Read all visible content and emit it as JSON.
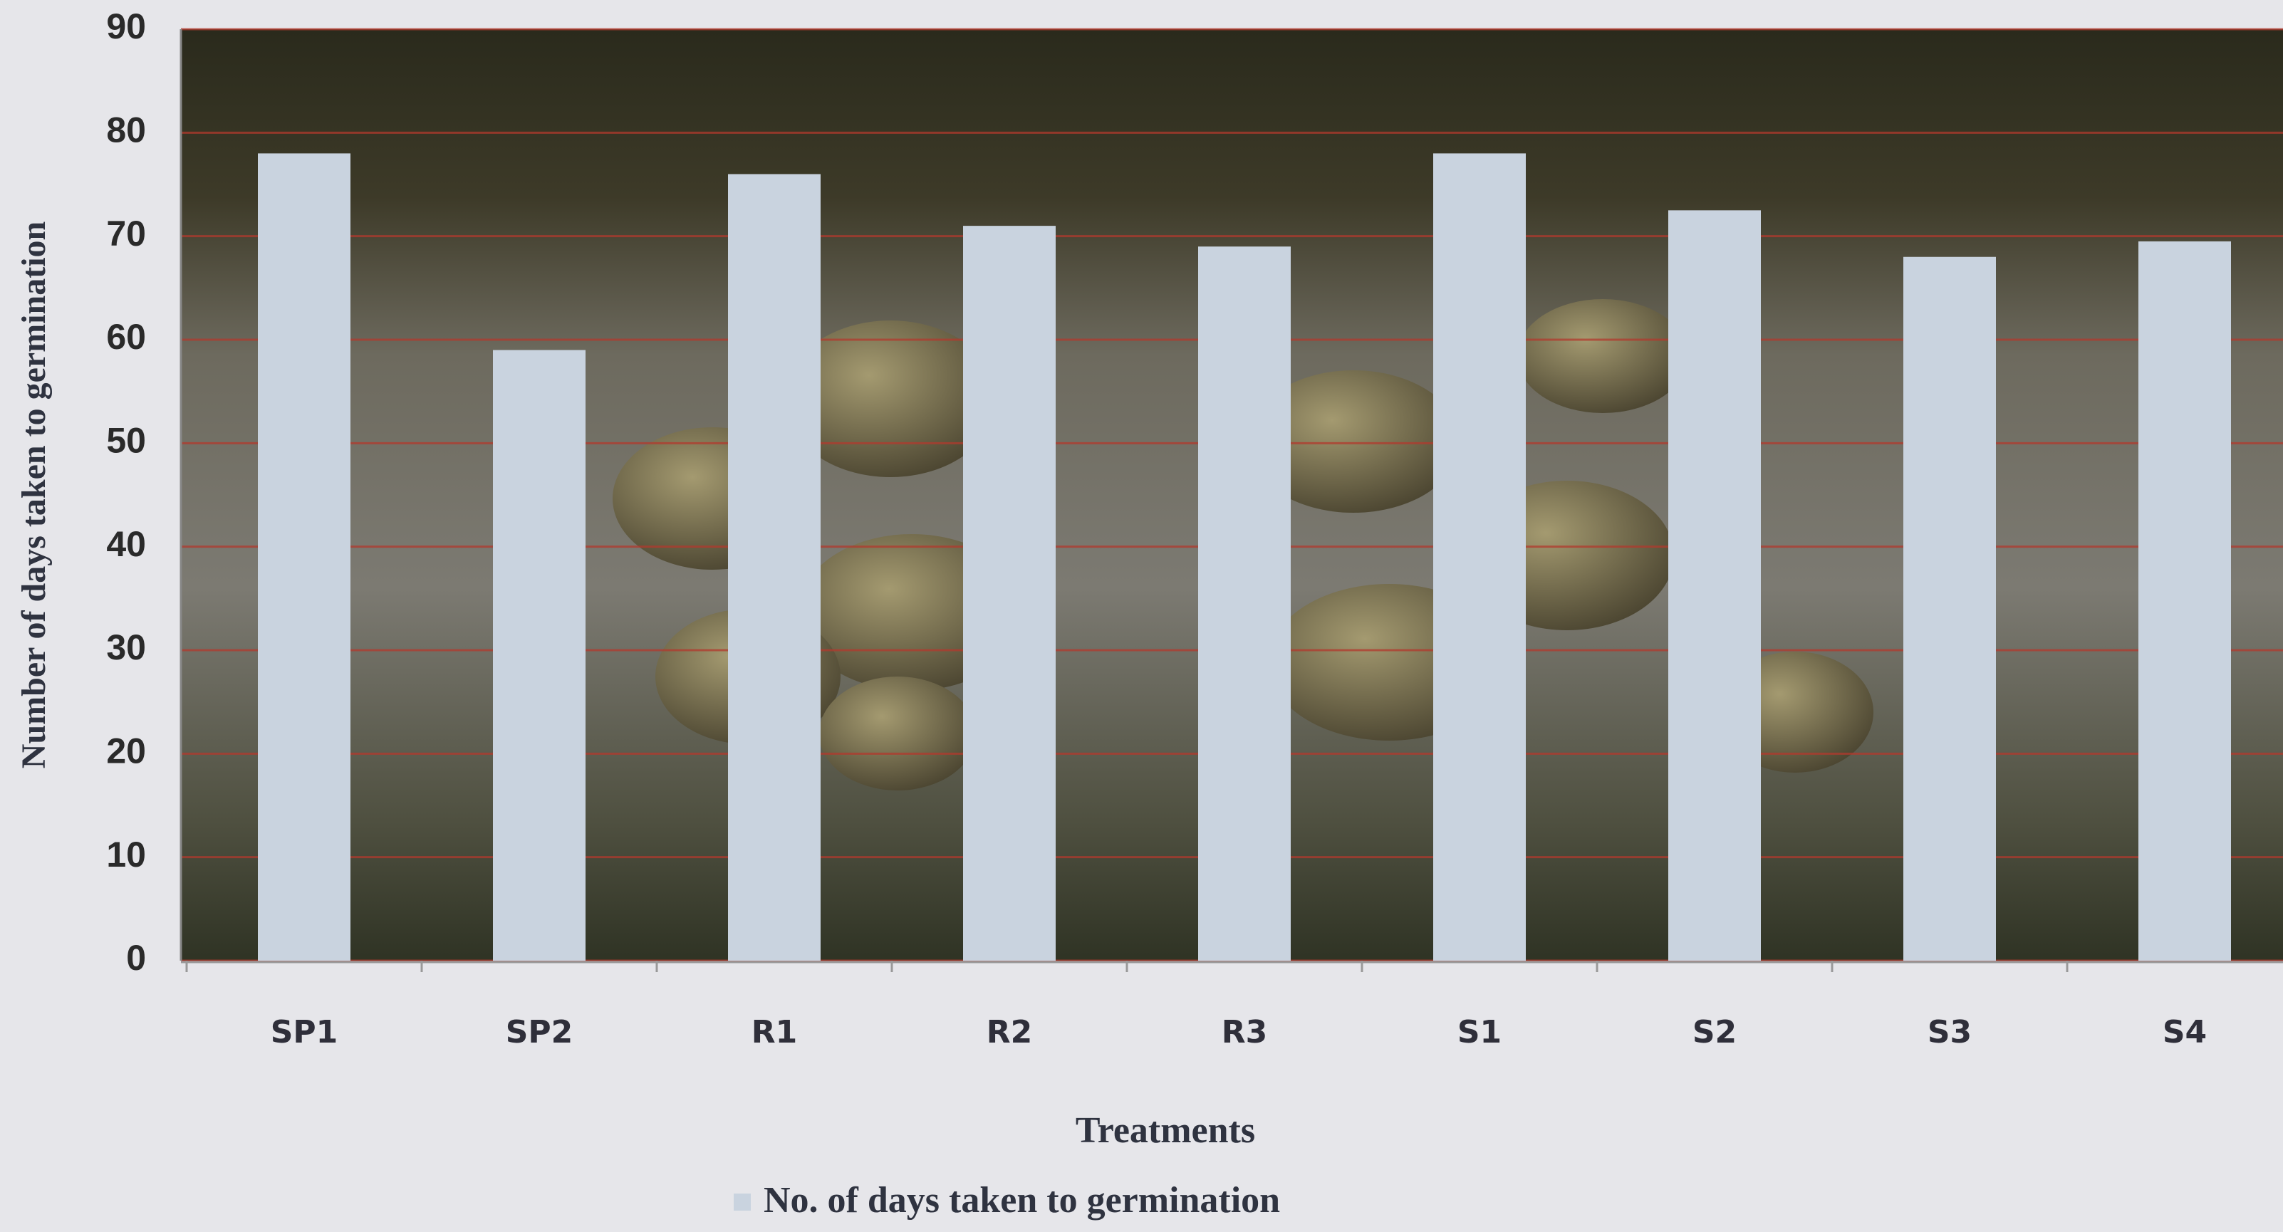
{
  "chart_data": {
    "type": "bar",
    "categories": [
      "SP1",
      "SP2",
      "R1",
      "R2",
      "R3",
      "S1",
      "S2",
      "S3",
      "S4"
    ],
    "series": [
      {
        "name": "No. of days taken to germination",
        "color": "#c9d3df",
        "values": [
          78,
          59,
          76,
          71,
          69,
          78,
          72.5,
          68,
          69.5
        ]
      }
    ],
    "ylim": [
      0,
      90
    ],
    "yticks": [
      0,
      10,
      20,
      30,
      40,
      50,
      60,
      70,
      80,
      90
    ],
    "y_label": "Number of days taken to germination",
    "x_label": "Treatments",
    "grid": true,
    "grid_color": "#b23a2e"
  }
}
